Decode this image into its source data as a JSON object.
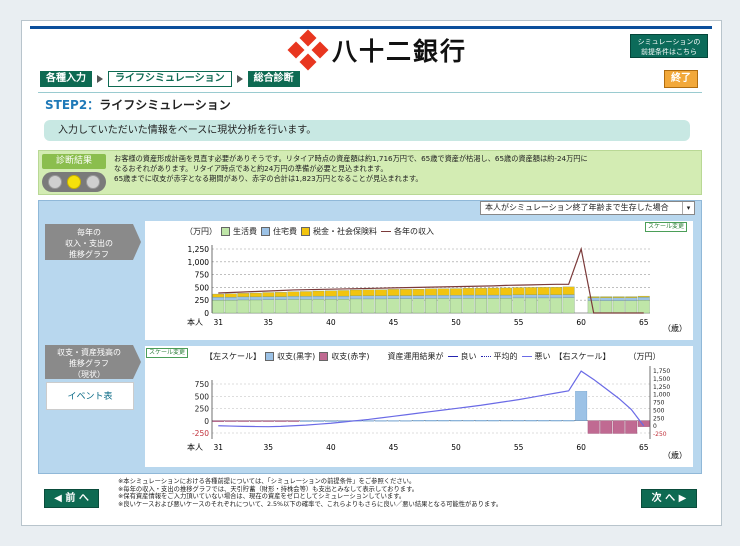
{
  "brand": {
    "name": "八十二銀行"
  },
  "header": {
    "premise_button": [
      "シミュレーションの",
      "前提条件はこちら"
    ],
    "end_button": "終了"
  },
  "nav": {
    "items": [
      "各種入力",
      "ライフシミュレーション",
      "総合診断"
    ]
  },
  "step": {
    "number": "STEP2",
    "separator": "：",
    "title": "ライフシミュレーション"
  },
  "intro": "入力していただいた情報をベースに現状分析を行います。",
  "diagnosis": {
    "label": "診断結果",
    "lines": [
      "お客様の資産形成計画を見直す必要がありそうです。リタイア時点の資産額は約1,716万円で、65歳で資産が枯渇し、65歳の資産額は約-24万円に",
      "なるおそれがあります。リタイア時点であと約24万円の準備が必要と見込まれます。",
      "65歳までに収支が赤字となる期間があり、赤字の合計は1,823万円となることが見込まれます。"
    ]
  },
  "selector": {
    "value": "本人がシミュレーション終了年齢まで生存した場合",
    "arrow": "▾"
  },
  "tabs": {
    "cashflow": [
      "毎年の",
      "収入・支出の",
      "推移グラフ"
    ],
    "assets": [
      "収支・資産残高の",
      "推移グラフ",
      "（現状）"
    ],
    "events": "イベント表"
  },
  "scale_button": "スケール変更",
  "chart_data": [
    {
      "type": "bar",
      "stacked": true,
      "unit_label": "（万円）",
      "xlabel_left": "本人",
      "xlabel_right": "（歳）",
      "ylim": [
        0,
        1250
      ],
      "yticks": [
        0,
        250,
        500,
        750,
        1000,
        1250
      ],
      "ytick_labels": [
        "0",
        "250",
        "500",
        "750",
        "1,000",
        "1,250"
      ],
      "x": [
        31,
        32,
        33,
        34,
        35,
        36,
        37,
        38,
        39,
        40,
        41,
        42,
        43,
        44,
        45,
        46,
        47,
        48,
        49,
        50,
        51,
        52,
        53,
        54,
        55,
        56,
        57,
        58,
        59,
        60,
        61,
        62,
        63,
        64,
        65
      ],
      "xtick_labels": [
        "31",
        "35",
        "40",
        "45",
        "50",
        "55",
        "60",
        "65"
      ],
      "series": [
        {
          "name": "生活費",
          "color": "#bfe6a8",
          "values": [
            250,
            250,
            255,
            255,
            260,
            260,
            265,
            265,
            270,
            270,
            270,
            275,
            275,
            275,
            280,
            280,
            280,
            285,
            285,
            285,
            290,
            290,
            290,
            290,
            295,
            295,
            295,
            295,
            300,
            0,
            240,
            240,
            240,
            240,
            250
          ]
        },
        {
          "name": "住宅費",
          "color": "#9cc2e6",
          "values": [
            60,
            60,
            60,
            60,
            60,
            60,
            60,
            60,
            60,
            60,
            60,
            60,
            60,
            60,
            60,
            60,
            60,
            60,
            60,
            60,
            60,
            60,
            60,
            60,
            60,
            60,
            60,
            60,
            60,
            0,
            60,
            60,
            60,
            60,
            60
          ]
        },
        {
          "name": "税金・社会保険料",
          "color": "#f2c40f",
          "values": [
            60,
            65,
            70,
            75,
            80,
            85,
            90,
            95,
            100,
            105,
            110,
            115,
            118,
            120,
            122,
            124,
            126,
            128,
            130,
            132,
            134,
            136,
            138,
            140,
            142,
            144,
            146,
            148,
            150,
            0,
            20,
            20,
            20,
            20,
            20
          ]
        }
      ],
      "line_series": {
        "name": "各年の収入",
        "color": "#7b3a3a",
        "values": [
          390,
          400,
          410,
          420,
          430,
          440,
          450,
          455,
          460,
          465,
          470,
          475,
          480,
          485,
          490,
          495,
          500,
          505,
          510,
          515,
          520,
          525,
          530,
          540,
          545,
          550,
          555,
          560,
          560,
          1250,
          0,
          0,
          0,
          0,
          0
        ]
      }
    },
    {
      "type": "bar",
      "left_scale_label": "【左スケール】",
      "right_scale_label": "【右スケール】",
      "outcome_label": "資産運用結果が",
      "unit_label": "（万円）",
      "xlabel_left": "本人",
      "xlabel_right": "（歳）",
      "ylim_left": [
        -250,
        750
      ],
      "yticks_left": [
        -250,
        0,
        250,
        500,
        750
      ],
      "ylim_right": [
        -250,
        1750
      ],
      "yticks_right": [
        -250,
        0,
        250,
        500,
        750,
        1000,
        1250,
        1500,
        1750
      ],
      "ytick_labels_right": [
        "-250",
        "0",
        "250",
        "500",
        "750",
        "1,000",
        "1,250",
        "1,500",
        "1,750"
      ],
      "x": [
        31,
        32,
        33,
        34,
        35,
        36,
        37,
        38,
        39,
        40,
        41,
        42,
        43,
        44,
        45,
        46,
        47,
        48,
        49,
        50,
        51,
        52,
        53,
        54,
        55,
        56,
        57,
        58,
        59,
        60,
        61,
        62,
        63,
        64,
        65
      ],
      "xtick_labels": [
        "31",
        "35",
        "40",
        "45",
        "50",
        "55",
        "60",
        "65"
      ],
      "bar_series": [
        {
          "name": "収支(黒字)",
          "color": "#9cc2e6"
        },
        {
          "name": "収支(赤字)",
          "color": "#c06a92"
        }
      ],
      "values": [
        -20,
        -15,
        -10,
        -10,
        -5,
        -5,
        -5,
        0,
        0,
        0,
        0,
        5,
        5,
        5,
        5,
        5,
        10,
        10,
        10,
        10,
        10,
        10,
        10,
        10,
        10,
        10,
        10,
        10,
        10,
        600,
        -260,
        -260,
        -260,
        -260,
        -120
      ],
      "line_series": [
        {
          "name": "良い",
          "color": "#2424b0",
          "style": "solid"
        },
        {
          "name": "平均的",
          "color": "#2424b0",
          "style": "dotted"
        },
        {
          "name": "悪い",
          "color": "#6a6ae6",
          "style": "solid",
          "values": [
            -20,
            -30,
            -40,
            -45,
            -50,
            -40,
            -20,
            0,
            30,
            60,
            100,
            140,
            180,
            230,
            280,
            330,
            380,
            430,
            480,
            530,
            580,
            630,
            690,
            750,
            810,
            880,
            950,
            1020,
            1090,
            1716,
            1450,
            1150,
            850,
            500,
            -24
          ]
        }
      ]
    }
  ],
  "notes": [
    "※本シミュレーションにおける各種前提については、「シミュレーションの前提条件」をご参照ください。",
    "※毎年の収入・支出の推移グラフでは、天引貯蓄（財形・持株会等）も支出とみなして表示しております。",
    "※保有資産情報をご入力頂いていない場合は、現在の資産をゼロとしてシミュレーションしています。",
    "※良いケースおよび悪いケースのそれぞれについて、2.5%以下の確率で、これらよりもさらに良い／悪い結果となる可能性があります。"
  ],
  "footer": {
    "back": "◀ 前 へ",
    "next": "次 へ ▶"
  }
}
